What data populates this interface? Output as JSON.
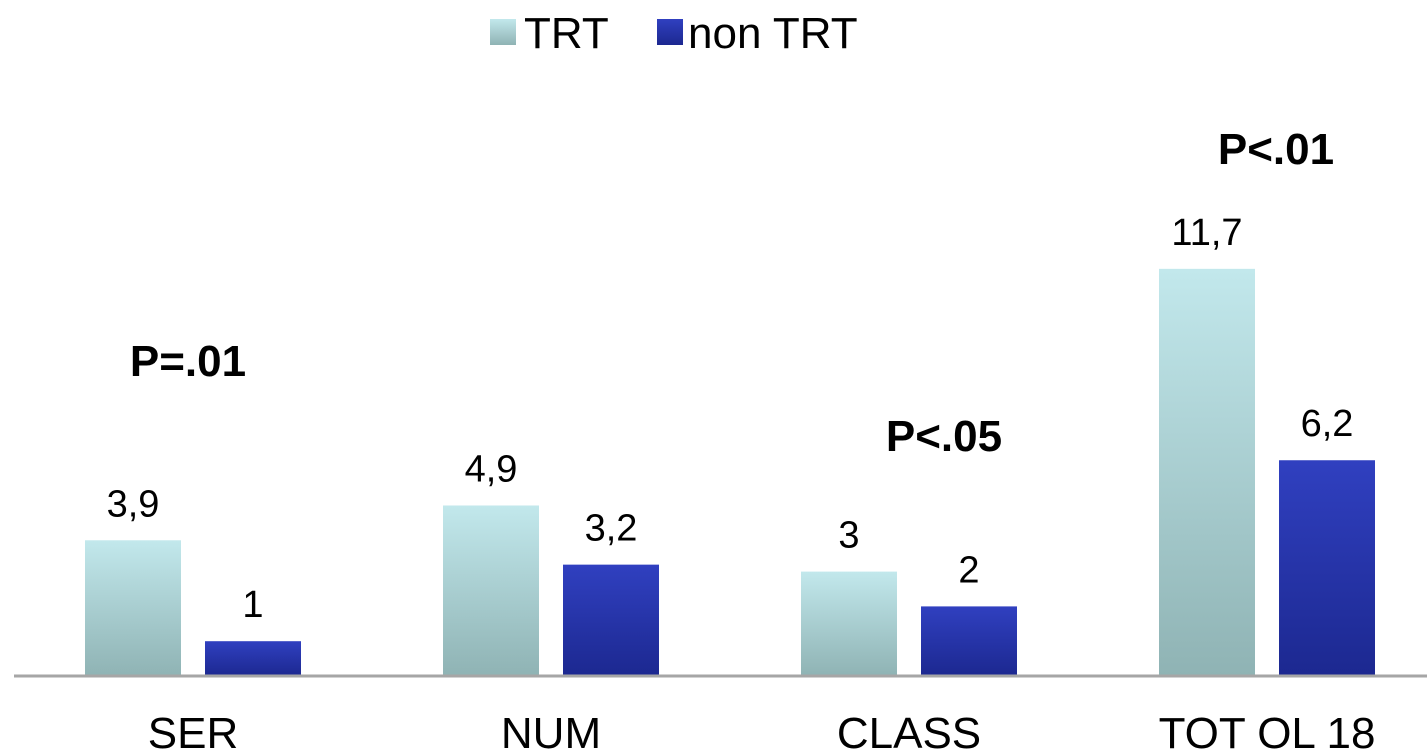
{
  "chart_data": {
    "type": "bar",
    "categories": [
      "SER",
      "NUM",
      "CLASS",
      "TOT OL 18"
    ],
    "series": [
      {
        "name": "TRT",
        "values": [
          3.9,
          4.9,
          3,
          11.7
        ],
        "labels": [
          "3,9",
          "4,9",
          "3",
          "11,7"
        ],
        "color_top": "#c2e8ec",
        "color_bottom": "#8fb3b4"
      },
      {
        "name": "non TRT",
        "values": [
          1,
          3.2,
          2,
          6.2
        ],
        "labels": [
          "1",
          "3,2",
          "2",
          "6,2"
        ],
        "color_top": "#3040c0",
        "color_bottom": "#1c2890"
      }
    ],
    "annotations": [
      "P=.01",
      "",
      "P<.05",
      "P<.01"
    ],
    "legend_position": "top-center",
    "grid": false,
    "ylim": [
      0,
      14
    ]
  }
}
